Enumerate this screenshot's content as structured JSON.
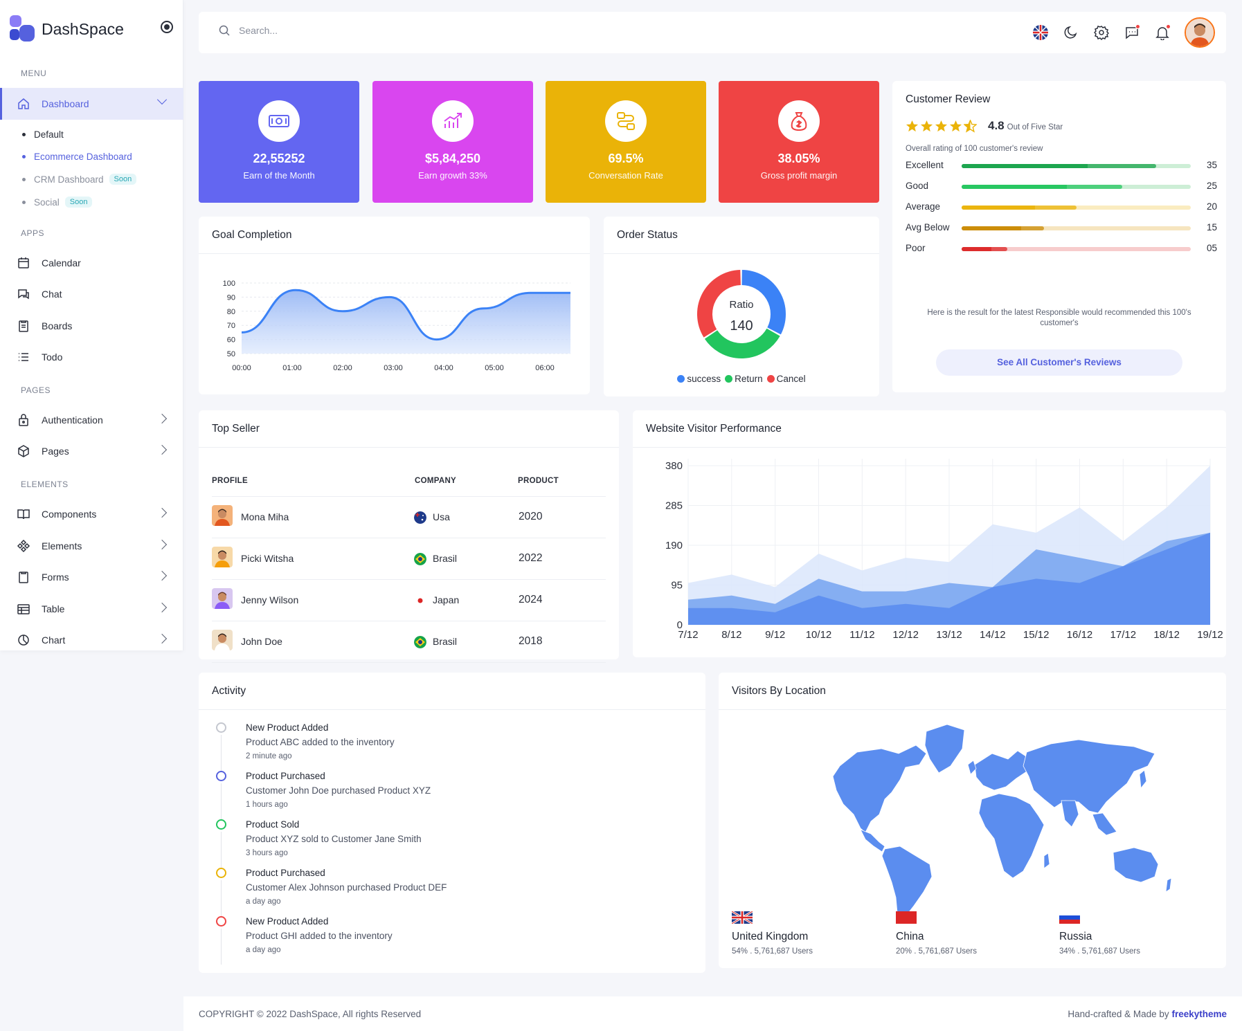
{
  "brand": {
    "name": "DashSpace"
  },
  "sidebar": {
    "sections": {
      "menu": "MENU",
      "apps": "APPS",
      "pages": "PAGES",
      "elements": "ELEMENTS"
    },
    "dashboard": "Dashboard",
    "sub": [
      {
        "label": "Default"
      },
      {
        "label": "Ecommerce Dashboard"
      },
      {
        "label": "CRM Dashboard",
        "badge": "Soon"
      },
      {
        "label": "Social",
        "badge": "Soon"
      }
    ],
    "apps": [
      "Calendar",
      "Chat",
      "Boards",
      "Todo"
    ],
    "pages": [
      "Authentication",
      "Pages"
    ],
    "elements": [
      "Components",
      "Elements",
      "Forms",
      "Table",
      "Chart"
    ]
  },
  "header": {
    "search_placeholder": "Search..."
  },
  "stats": [
    {
      "value": "22,55252",
      "label": "Earn of the Month",
      "color": "#6366f1",
      "icon": "money-icon"
    },
    {
      "value": "$5,84,250",
      "label": "Earn growth 33%",
      "color": "#d946ef",
      "icon": "growth-chart-icon"
    },
    {
      "value": "69.5%",
      "label": "Conversation Rate",
      "color": "#eab308",
      "icon": "route-icon"
    },
    {
      "value": "38.05%",
      "label": "Gross profit margin",
      "color": "#ef4444",
      "icon": "money-bag-icon"
    }
  ],
  "goal": {
    "title": "Goal Completion",
    "chart_data": {
      "type": "area",
      "x": [
        "00:00",
        "01:00",
        "02:00",
        "03:00",
        "04:00",
        "05:00",
        "06:00"
      ],
      "ylim": [
        50,
        100
      ],
      "yticks": [
        50,
        60,
        70,
        80,
        90,
        100
      ],
      "values": [
        65,
        95,
        80,
        90,
        60,
        82,
        93
      ],
      "color": "#3b82f6"
    }
  },
  "order": {
    "title": "Order Status",
    "center_label": "Ratio",
    "center_value": "140",
    "chart_data": {
      "type": "pie",
      "slices": [
        {
          "name": "success",
          "value": 33,
          "color": "#3b82f6"
        },
        {
          "name": "Return",
          "value": 33,
          "color": "#22c55e"
        },
        {
          "name": "Cancel",
          "value": 34,
          "color": "#ef4444"
        }
      ]
    }
  },
  "review": {
    "title": "Customer Review",
    "rating": "4.8",
    "out_of": "Out of Five Star",
    "overall": "Overall rating of 100 customer's review",
    "rows": [
      {
        "label": "Excellent",
        "count": "35",
        "fill": 0.85,
        "solid": 0.55,
        "color": "#16a34a",
        "track": "#cdeed6"
      },
      {
        "label": "Good",
        "count": "25",
        "fill": 0.7,
        "solid": 0.46,
        "color": "#22c55e",
        "track": "#cdeed6"
      },
      {
        "label": "Average",
        "count": "20",
        "fill": 0.5,
        "solid": 0.32,
        "color": "#eab308",
        "track": "#faecc0"
      },
      {
        "label": "Avg Below",
        "count": "15",
        "fill": 0.36,
        "solid": 0.26,
        "color": "#ca8a04",
        "track": "#f6e5bf"
      },
      {
        "label": "Poor",
        "count": "05",
        "fill": 0.2,
        "solid": 0.13,
        "color": "#dc2626",
        "track": "#f7cccc"
      }
    ],
    "note": "Here is the result for the latest Responsible would recommended this 100's customer's",
    "button": "See All Customer's Reviews"
  },
  "seller": {
    "title": "Top Seller",
    "columns": [
      "PROFILE",
      "COMPANY",
      "PRODUCT"
    ],
    "rows": [
      {
        "name": "Mona Miha",
        "company": "Usa",
        "product": "2020",
        "flag": "australia-flag-icon"
      },
      {
        "name": "Picki Witsha",
        "company": "Brasil",
        "product": "2022",
        "flag": "brazil-flag-icon"
      },
      {
        "name": "Jenny Wilson",
        "company": "Japan",
        "product": "2024",
        "flag": "japan-flag-icon"
      },
      {
        "name": "John Doe",
        "company": "Brasil",
        "product": "2018",
        "flag": "brazil-flag-icon"
      }
    ]
  },
  "visitor": {
    "title": "Website Visitor Performance",
    "chart_data": {
      "type": "area",
      "x": [
        "7/12",
        "8/12",
        "9/12",
        "10/12",
        "11/12",
        "12/12",
        "13/12",
        "14/12",
        "15/12",
        "16/12",
        "17/12",
        "18/12",
        "19/12"
      ],
      "ylim": [
        0,
        380
      ],
      "yticks": [
        0,
        95,
        190,
        285,
        380
      ],
      "series": [
        {
          "values": [
            100,
            120,
            90,
            170,
            130,
            160,
            150,
            240,
            220,
            280,
            200,
            280,
            380
          ],
          "color": "#dbe6fb"
        },
        {
          "values": [
            60,
            70,
            50,
            110,
            80,
            80,
            100,
            90,
            180,
            160,
            140,
            200,
            220
          ],
          "color": "#7ba7f1"
        },
        {
          "values": [
            40,
            40,
            30,
            70,
            40,
            50,
            40,
            90,
            110,
            100,
            140,
            180,
            220
          ],
          "color": "#5b8def"
        }
      ]
    }
  },
  "activity": {
    "title": "Activity",
    "items": [
      {
        "title": "New Product Added",
        "desc": "Product ABC added to the inventory",
        "time": "2 minute ago",
        "color": "#c4c7cf"
      },
      {
        "title": "Product Purchased",
        "desc": "Customer John Doe purchased Product XYZ",
        "time": "1 hours ago",
        "color": "#5561de"
      },
      {
        "title": "Product Sold",
        "desc": "Product XYZ sold to Customer Jane Smith",
        "time": "3 hours ago",
        "color": "#22c55e"
      },
      {
        "title": "Product Purchased",
        "desc": "Customer Alex Johnson purchased Product DEF",
        "time": "a day ago",
        "color": "#eab308"
      },
      {
        "title": "New Product Added",
        "desc": "Product GHI added to the inventory",
        "time": "a day ago",
        "color": "#ef4444"
      }
    ]
  },
  "location": {
    "title": "Visitors By Location",
    "map_color": "#5b8def",
    "items": [
      {
        "name": "United Kingdom",
        "stat": "54% . 5,761,687 Users",
        "flag": "uk-flag-icon"
      },
      {
        "name": "China",
        "stat": "20% . 5,761,687 Users",
        "flag": "china-flag-icon"
      },
      {
        "name": "Russia",
        "stat": "34% . 5,761,687 Users",
        "flag": "russia-flag-icon"
      }
    ]
  },
  "footer": {
    "copyright": "COPYRIGHT © 2022 DashSpace, All rights Reserved",
    "made_by": "Hand-crafted & Made by",
    "author": "freekytheme"
  }
}
